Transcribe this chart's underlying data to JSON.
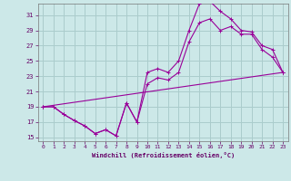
{
  "background_color": "#cce8e8",
  "grid_color": "#aacccc",
  "line_color": "#990099",
  "xlim": [
    -0.5,
    23.5
  ],
  "ylim": [
    14.5,
    32.5
  ],
  "yticks": [
    15,
    17,
    19,
    21,
    23,
    25,
    27,
    29,
    31
  ],
  "xticks": [
    0,
    1,
    2,
    3,
    4,
    5,
    6,
    7,
    8,
    9,
    10,
    11,
    12,
    13,
    14,
    15,
    16,
    17,
    18,
    19,
    20,
    21,
    22,
    23
  ],
  "xlabel": "Windchill (Refroidissement éolien,°C)",
  "line1_x": [
    0,
    1,
    2,
    3,
    4,
    5,
    6,
    7,
    8,
    9,
    10,
    11,
    12,
    13,
    14,
    15,
    16,
    17,
    18,
    19,
    20,
    21,
    22,
    23
  ],
  "line1_y": [
    19,
    19,
    18.0,
    17.2,
    16.5,
    15.5,
    16.0,
    15.2,
    19.5,
    17.0,
    23.5,
    24.0,
    23.5,
    25.0,
    29.0,
    32.5,
    32.8,
    31.5,
    30.5,
    29.0,
    28.8,
    27.0,
    26.5,
    23.5
  ],
  "line2_x": [
    0,
    1,
    2,
    3,
    4,
    5,
    6,
    7,
    8,
    9,
    10,
    11,
    12,
    13,
    14,
    15,
    16,
    17,
    18,
    19,
    20,
    21,
    22,
    23
  ],
  "line2_y": [
    19,
    19,
    18.0,
    17.2,
    16.5,
    15.5,
    16.0,
    15.2,
    19.5,
    17.0,
    22.0,
    22.8,
    22.5,
    23.5,
    27.5,
    30.0,
    30.5,
    29.0,
    29.5,
    28.5,
    28.5,
    26.5,
    25.5,
    23.5
  ],
  "line3_x": [
    0,
    23
  ],
  "line3_y": [
    19,
    23.5
  ]
}
